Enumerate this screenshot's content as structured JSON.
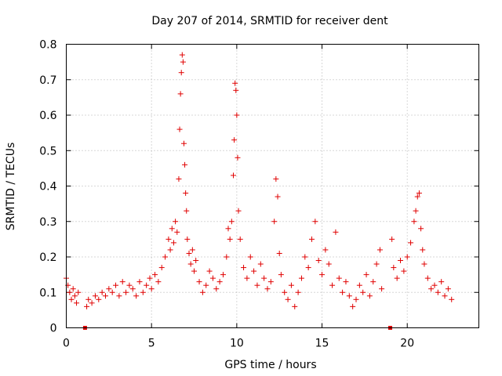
{
  "chart_data": {
    "type": "scatter",
    "title": "Day 207 of 2014, SRMTID for receiver dent",
    "xlabel": "GPS time / hours",
    "ylabel": "SRMTID / TECUs",
    "xlim": [
      0,
      24.2
    ],
    "ylim": [
      0,
      0.8
    ],
    "xticks": [
      0,
      5,
      10,
      15,
      20
    ],
    "xtick_labels": [
      "0",
      "5",
      "10",
      "15",
      "20"
    ],
    "yticks": [
      0,
      0.1,
      0.2,
      0.3,
      0.4,
      0.5,
      0.6,
      0.7,
      0.8
    ],
    "ytick_labels": [
      "0",
      "0.1",
      "0.2",
      "0.3",
      "0.4",
      "0.5",
      "0.6",
      "0.7",
      "0.8"
    ],
    "grid": true,
    "marker": "+",
    "color": "#e00000",
    "zero_markers": [
      {
        "x": 1.1,
        "y": 0
      },
      {
        "x": 19.0,
        "y": 0
      }
    ],
    "series": [
      {
        "name": "SRMTID",
        "x": [
          0.0,
          0.1,
          0.2,
          0.3,
          0.4,
          0.5,
          0.6,
          0.7,
          1.2,
          1.3,
          1.5,
          1.7,
          1.9,
          2.1,
          2.3,
          2.5,
          2.7,
          2.9,
          3.1,
          3.3,
          3.5,
          3.7,
          3.9,
          4.1,
          4.3,
          4.5,
          4.7,
          4.9,
          5.0,
          5.2,
          5.4,
          5.6,
          5.8,
          6.0,
          6.1,
          6.2,
          6.3,
          6.4,
          6.5,
          6.6,
          6.65,
          6.7,
          6.75,
          6.8,
          6.85,
          6.9,
          6.95,
          7.0,
          7.05,
          7.1,
          7.2,
          7.3,
          7.4,
          7.5,
          7.6,
          7.8,
          8.0,
          8.2,
          8.4,
          8.6,
          8.8,
          9.0,
          9.2,
          9.4,
          9.5,
          9.6,
          9.7,
          9.8,
          9.85,
          9.9,
          9.95,
          10.0,
          10.05,
          10.1,
          10.2,
          10.4,
          10.6,
          10.8,
          11.0,
          11.2,
          11.4,
          11.6,
          11.8,
          12.0,
          12.2,
          12.3,
          12.4,
          12.5,
          12.6,
          12.8,
          13.0,
          13.2,
          13.4,
          13.6,
          13.8,
          14.0,
          14.2,
          14.4,
          14.6,
          14.8,
          15.0,
          15.2,
          15.4,
          15.6,
          15.8,
          16.0,
          16.2,
          16.4,
          16.6,
          16.8,
          17.0,
          17.2,
          17.4,
          17.6,
          17.8,
          18.0,
          18.2,
          18.4,
          18.5,
          19.1,
          19.2,
          19.4,
          19.6,
          19.8,
          20.0,
          20.2,
          20.4,
          20.5,
          20.6,
          20.7,
          20.8,
          20.9,
          21.0,
          21.2,
          21.4,
          21.6,
          21.8,
          22.0,
          22.2,
          22.4,
          22.6
        ],
        "y": [
          0.14,
          0.12,
          0.1,
          0.08,
          0.11,
          0.09,
          0.07,
          0.1,
          0.06,
          0.08,
          0.07,
          0.09,
          0.08,
          0.1,
          0.09,
          0.11,
          0.1,
          0.12,
          0.09,
          0.13,
          0.1,
          0.12,
          0.11,
          0.09,
          0.13,
          0.1,
          0.12,
          0.14,
          0.11,
          0.15,
          0.13,
          0.17,
          0.2,
          0.25,
          0.22,
          0.28,
          0.24,
          0.3,
          0.27,
          0.42,
          0.56,
          0.66,
          0.72,
          0.77,
          0.75,
          0.52,
          0.46,
          0.38,
          0.33,
          0.25,
          0.21,
          0.18,
          0.22,
          0.16,
          0.19,
          0.13,
          0.1,
          0.12,
          0.16,
          0.14,
          0.11,
          0.13,
          0.15,
          0.2,
          0.28,
          0.25,
          0.3,
          0.43,
          0.53,
          0.69,
          0.67,
          0.6,
          0.48,
          0.33,
          0.25,
          0.17,
          0.14,
          0.2,
          0.16,
          0.12,
          0.18,
          0.14,
          0.11,
          0.13,
          0.3,
          0.42,
          0.37,
          0.21,
          0.15,
          0.1,
          0.08,
          0.12,
          0.06,
          0.1,
          0.14,
          0.2,
          0.17,
          0.25,
          0.3,
          0.19,
          0.15,
          0.22,
          0.18,
          0.12,
          0.27,
          0.14,
          0.1,
          0.13,
          0.09,
          0.06,
          0.08,
          0.12,
          0.1,
          0.15,
          0.09,
          0.13,
          0.18,
          0.22,
          0.11,
          0.25,
          0.17,
          0.14,
          0.19,
          0.16,
          0.2,
          0.24,
          0.3,
          0.33,
          0.37,
          0.38,
          0.28,
          0.22,
          0.18,
          0.14,
          0.11,
          0.12,
          0.1,
          0.13,
          0.09,
          0.11,
          0.08
        ]
      }
    ]
  }
}
